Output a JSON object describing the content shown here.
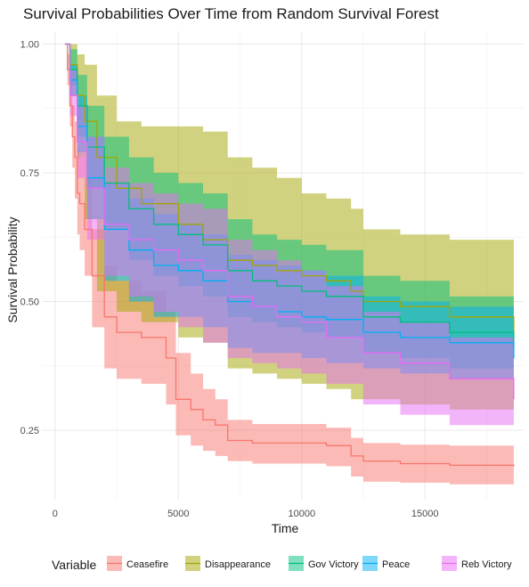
{
  "chart_data": {
    "type": "line",
    "title": "Survival Probabilities Over Time from Random Survival Forest",
    "xlabel": "Time",
    "ylabel": "Survival Probability",
    "xlim": [
      -500,
      19000
    ],
    "ylim": [
      0.115,
      1.025
    ],
    "x_ticks": [
      0,
      5000,
      10000,
      15000
    ],
    "x_tick_labels": [
      "0",
      "5000",
      "10000",
      "15000"
    ],
    "y_ticks": [
      0.25,
      0.5,
      0.75,
      1.0
    ],
    "y_tick_labels": [
      "0.25",
      "0.50",
      "0.75",
      "1.00"
    ],
    "grid": true,
    "legend_title": "Variable",
    "legend_position": "bottom",
    "band_opacity": 0.5,
    "series": [
      {
        "name": "Ceasefire",
        "color": "#F8766D",
        "x": [
          400,
          500,
          600,
          700,
          800,
          900,
          1000,
          1200,
          1500,
          2000,
          2500,
          3500,
          4500,
          4900,
          5500,
          6000,
          6500,
          7000,
          8000,
          10000,
          11000,
          12000,
          12500,
          14000,
          16000,
          18600
        ],
        "y": [
          1.0,
          0.95,
          0.88,
          0.82,
          0.78,
          0.71,
          0.69,
          0.64,
          0.55,
          0.47,
          0.44,
          0.43,
          0.39,
          0.31,
          0.29,
          0.27,
          0.26,
          0.23,
          0.225,
          0.225,
          0.22,
          0.2,
          0.19,
          0.185,
          0.182,
          0.18
        ],
        "lower": [
          1.0,
          0.92,
          0.84,
          0.76,
          0.7,
          0.63,
          0.6,
          0.55,
          0.45,
          0.37,
          0.35,
          0.34,
          0.3,
          0.24,
          0.22,
          0.21,
          0.2,
          0.19,
          0.185,
          0.185,
          0.18,
          0.16,
          0.15,
          0.148,
          0.145,
          0.143
        ],
        "upper": [
          1.0,
          0.98,
          0.93,
          0.88,
          0.85,
          0.8,
          0.78,
          0.74,
          0.64,
          0.57,
          0.54,
          0.52,
          0.48,
          0.4,
          0.36,
          0.33,
          0.31,
          0.27,
          0.262,
          0.262,
          0.255,
          0.235,
          0.225,
          0.222,
          0.22,
          0.215
        ]
      },
      {
        "name": "Disappearance",
        "color": "#A3A500",
        "x": [
          400,
          600,
          900,
          1200,
          1700,
          2500,
          3500,
          5000,
          6000,
          7000,
          8000,
          9000,
          10000,
          11000,
          12000,
          12500,
          14000,
          16000,
          18600
        ],
        "y": [
          1.0,
          0.96,
          0.9,
          0.85,
          0.78,
          0.72,
          0.69,
          0.65,
          0.62,
          0.58,
          0.57,
          0.56,
          0.55,
          0.54,
          0.52,
          0.5,
          0.49,
          0.47,
          0.44
        ],
        "lower": [
          1.0,
          0.9,
          0.78,
          0.66,
          0.52,
          0.48,
          0.46,
          0.43,
          0.42,
          0.37,
          0.36,
          0.35,
          0.34,
          0.33,
          0.31,
          0.31,
          0.3,
          0.29,
          0.28
        ],
        "upper": [
          1.0,
          1.0,
          0.98,
          0.96,
          0.9,
          0.85,
          0.84,
          0.84,
          0.83,
          0.78,
          0.76,
          0.74,
          0.71,
          0.7,
          0.68,
          0.64,
          0.63,
          0.62,
          0.6
        ]
      },
      {
        "name": "Gov Victory",
        "color": "#00BF7D",
        "x": [
          400,
          600,
          900,
          1300,
          2000,
          3000,
          4000,
          5000,
          6000,
          7000,
          8000,
          9000,
          10000,
          11000,
          12500,
          14000,
          16000,
          18600
        ],
        "y": [
          1.0,
          0.95,
          0.88,
          0.8,
          0.73,
          0.68,
          0.65,
          0.63,
          0.61,
          0.56,
          0.54,
          0.53,
          0.52,
          0.51,
          0.47,
          0.46,
          0.44,
          0.41
        ],
        "lower": [
          1.0,
          0.92,
          0.82,
          0.72,
          0.64,
          0.58,
          0.55,
          0.53,
          0.51,
          0.47,
          0.46,
          0.45,
          0.44,
          0.43,
          0.4,
          0.39,
          0.37,
          0.34
        ],
        "upper": [
          1.0,
          0.99,
          0.94,
          0.88,
          0.82,
          0.78,
          0.75,
          0.73,
          0.71,
          0.66,
          0.63,
          0.62,
          0.61,
          0.6,
          0.55,
          0.54,
          0.51,
          0.47
        ]
      },
      {
        "name": "Peace",
        "color": "#00B0F6",
        "x": [
          400,
          600,
          900,
          1300,
          2000,
          3000,
          4000,
          5000,
          6000,
          7000,
          8000,
          9000,
          10000,
          11000,
          12500,
          14000,
          16000,
          18600
        ],
        "y": [
          1.0,
          0.93,
          0.84,
          0.74,
          0.64,
          0.6,
          0.57,
          0.56,
          0.54,
          0.5,
          0.49,
          0.48,
          0.47,
          0.465,
          0.44,
          0.43,
          0.42,
          0.39
        ],
        "lower": [
          1.0,
          0.9,
          0.79,
          0.66,
          0.54,
          0.5,
          0.47,
          0.47,
          0.45,
          0.41,
          0.4,
          0.4,
          0.39,
          0.38,
          0.37,
          0.36,
          0.35,
          0.33
        ],
        "upper": [
          1.0,
          0.96,
          0.9,
          0.82,
          0.73,
          0.7,
          0.67,
          0.65,
          0.63,
          0.59,
          0.58,
          0.57,
          0.56,
          0.55,
          0.51,
          0.5,
          0.49,
          0.45
        ]
      },
      {
        "name": "Reb Victory",
        "color": "#E76BF3",
        "x": [
          400,
          600,
          900,
          1300,
          2000,
          3000,
          4000,
          5000,
          6000,
          7000,
          8000,
          9000,
          10000,
          11000,
          12500,
          14000,
          16000,
          18600
        ],
        "y": [
          1.0,
          0.9,
          0.81,
          0.72,
          0.65,
          0.62,
          0.6,
          0.58,
          0.56,
          0.51,
          0.49,
          0.47,
          0.46,
          0.43,
          0.4,
          0.38,
          0.35,
          0.31
        ],
        "lower": [
          1.0,
          0.86,
          0.74,
          0.62,
          0.55,
          0.51,
          0.48,
          0.45,
          0.42,
          0.39,
          0.38,
          0.37,
          0.36,
          0.34,
          0.3,
          0.28,
          0.26,
          0.235
        ],
        "upper": [
          1.0,
          0.95,
          0.88,
          0.82,
          0.76,
          0.73,
          0.71,
          0.69,
          0.68,
          0.62,
          0.6,
          0.58,
          0.56,
          0.53,
          0.48,
          0.46,
          0.43,
          0.39
        ]
      }
    ]
  }
}
